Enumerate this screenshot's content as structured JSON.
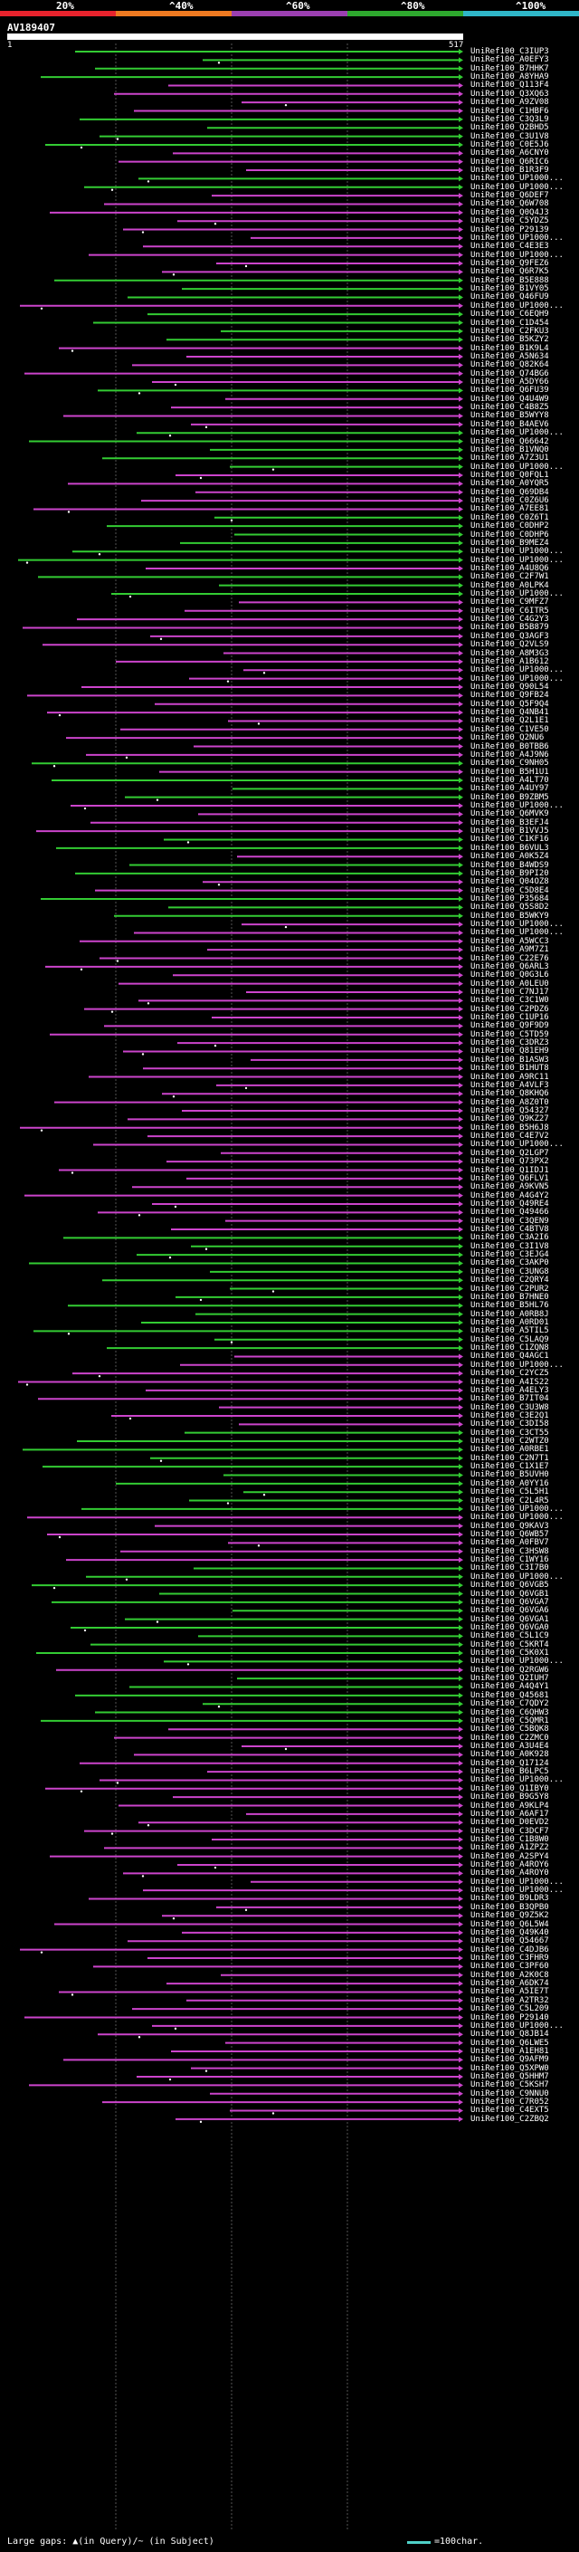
{
  "legend": {
    "percent_labels": [
      "20%",
      "^40%",
      "^60%",
      "^80%",
      "^100%"
    ],
    "bands": [
      {
        "color": "#e8232d"
      },
      {
        "color": "#ee7a21"
      },
      {
        "color": "#9b3fb0"
      },
      {
        "color": "#2ea82e"
      },
      {
        "color": "#2fb6c8"
      }
    ]
  },
  "query": {
    "id": "AV189407",
    "start": "1",
    "end": "517"
  },
  "hits": [
    "UniRef100_C3IUP3",
    "UniRef100_A0EFY3",
    "UniRef100_B7HHK7",
    "UniRef100_A8YHA9",
    "UniRef100_Q113F4",
    "UniRef100_Q3XQ63",
    "UniRef100_A9ZV08",
    "UniRef100_C1HBF6",
    "UniRef100_C3Q3L9",
    "UniRef100_Q2BHD5",
    "UniRef100_C3U1V8",
    "UniRef100_C0E5J6",
    "UniRef100_A6CNY0",
    "UniRef100_Q6RIC6",
    "UniRef100_B1R3F9",
    "UniRef100_UP1000...",
    "UniRef100_UP1000...",
    "UniRef100_Q6DEF7",
    "UniRef100_Q6W708",
    "UniRef100_Q0Q4J3",
    "UniRef100_C5YDZ5",
    "UniRef100_P29139",
    "UniRef100_UP1000...",
    "UniRef100_C4E3E3",
    "UniRef100_UP1000...",
    "UniRef100_Q9FEZ6",
    "UniRef100_Q6R7K5",
    "UniRef100_B5E888",
    "UniRef100_B1VY05",
    "UniRef100_Q46FU9",
    "UniRef100_UP1000...",
    "UniRef100_C6EQH9",
    "UniRef100_C1D454",
    "UniRef100_C2FKU3",
    "UniRef100_B5KZY2",
    "UniRef100_B1K9L4",
    "UniRef100_A5N634",
    "UniRef100_Q82K64",
    "UniRef100_Q74BG6",
    "UniRef100_A5DY66",
    "UniRef100_Q6FU39",
    "UniRef100_Q4U4W9",
    "UniRef100_C4B8Z5",
    "UniRef100_B5WYY8",
    "UniRef100_B4AEV6",
    "UniRef100_UP1000...",
    "UniRef100_Q66642",
    "UniRef100_B1VNQ0",
    "UniRef100_A7Z3U1",
    "UniRef100_UP1000...",
    "UniRef100_Q0FQL1",
    "UniRef100_A0YQR5",
    "UniRef100_Q69DB4",
    "UniRef100_C0Z6U6",
    "UniRef100_A7EE81",
    "UniRef100_C0Z6T1",
    "UniRef100_C0DHP2",
    "UniRef100_C0DHP6",
    "UniRef100_B9MEZ4",
    "UniRef100_UP1000...",
    "UniRef100_UP1000...",
    "UniRef100_A4U8Q6",
    "UniRef100_C2F7W1",
    "UniRef100_A0LPK4",
    "UniRef100_UP1000...",
    "UniRef100_C9MFZ7",
    "UniRef100_C6ITR5",
    "UniRef100_C4G2Y3",
    "UniRef100_B5B879",
    "UniRef100_Q3AGF3",
    "UniRef100_Q2VLS9",
    "UniRef100_A8M3G3",
    "UniRef100_A1B612",
    "UniRef100_UP1000...",
    "UniRef100_UP1000...",
    "UniRef100_Q90L54",
    "UniRef100_Q9FB24",
    "UniRef100_Q5F9Q4",
    "UniRef100_Q4NB41",
    "UniRef100_Q2L1E1",
    "UniRef100_C1VE50",
    "UniRef100_Q2NU6",
    "UniRef100_B0TBB6",
    "UniRef100_A4J9N6",
    "UniRef100_C9NH05",
    "UniRef100_B5H1U1",
    "UniRef100_A4LT70",
    "UniRef100_A4UY97",
    "UniRef100_B9ZBM5",
    "UniRef100_UP1000...",
    "UniRef100_Q6MVK9",
    "UniRef100_B3EFJ4",
    "UniRef100_B1VVJ5",
    "UniRef100_C1KF16",
    "UniRef100_B6VUL3",
    "UniRef100_A0K5Z4",
    "UniRef100_B4WDS9",
    "UniRef100_B9PI20",
    "UniRef100_Q04OZ8",
    "UniRef100_C5D8E4",
    "UniRef100_P35684",
    "UniRef100_Q5S8D2",
    "UniRef100_B5WKY9",
    "UniRef100_UP1000...",
    "UniRef100_UP1000...",
    "UniRef100_A5WCC3",
    "UniRef100_A9M7Z1",
    "UniRef100_C22E76",
    "UniRef100_Q6ARL3",
    "UniRef100_Q0G3L6",
    "UniRef100_A0LEU0",
    "UniRef100_C7NJ17",
    "UniRef100_C3C1W0",
    "UniRef100_C2PDZ6",
    "UniRef100_C1UP16",
    "UniRef100_Q9F9D9",
    "UniRef100_C5TD59",
    "UniRef100_C3DRZ3",
    "UniRef100_Q81EH9",
    "UniRef100_B1ASW3",
    "UniRef100_B1HUT8",
    "UniRef100_A9RC11",
    "UniRef100_A4VLF3",
    "UniRef100_Q8KHQ6",
    "UniRef100_A8Z0T0",
    "UniRef100_Q54327",
    "UniRef100_Q9KZ27",
    "UniRef100_B5H6J8",
    "UniRef100_C4E7V2",
    "UniRef100_UP1000...",
    "UniRef100_Q2LGP7",
    "UniRef100_Q73PX2",
    "UniRef100_Q1IDJ1",
    "UniRef100_Q6FLV1",
    "UniRef100_A9KVN5",
    "UniRef100_A4G4Y2",
    "UniRef100_Q49RE4",
    "UniRef100_Q49466",
    "UniRef100_C3QEN9",
    "UniRef100_C4BTV8",
    "UniRef100_C3A2I6",
    "UniRef100_C3I1V8",
    "UniRef100_C3EJG4",
    "UniRef100_C3AKP0",
    "UniRef100_C3UNG8",
    "UniRef100_C2QRY4",
    "UniRef100_C2PUR2",
    "UniRef100_B7HNE0",
    "UniRef100_B5HL76",
    "UniRef100_A0RB8J",
    "UniRef100_A0RD01",
    "UniRef100_A5TIL5",
    "UniRef100_C5LAQ9",
    "UniRef100_C1ZQN8",
    "UniRef100_Q4AGC1",
    "UniRef100_UP1000...",
    "UniRef100_C2YCZ5",
    "UniRef100_A4IS22",
    "UniRef100_A4ELY3",
    "UniRef100_B7IT04",
    "UniRef100_C3U3W8",
    "UniRef100_C3E2Q1",
    "UniRef100_C3DI58",
    "UniRef100_C3CT55",
    "UniRef100_C2WTZ0",
    "UniRef100_A0RBE1",
    "UniRef100_C2N7T1",
    "UniRef100_C1X1E7",
    "UniRef100_B5UVH0",
    "UniRef100_A0YY16",
    "UniRef100_C5L5H1",
    "UniRef100_C2L4R5",
    "UniRef100_UP1000...",
    "UniRef100_UP1000...",
    "UniRef100_Q9KAV3",
    "UniRef100_Q6WB57",
    "UniRef100_A0FBV7",
    "UniRef100_C3HSW8",
    "UniRef100_C1WY16",
    "UniRef100_C3I7B0",
    "UniRef100_UP1000...",
    "UniRef100_Q6VGB5",
    "UniRef100_Q6VGB1",
    "UniRef100_Q6VGA7",
    "UniRef100_Q6VGA6",
    "UniRef100_Q6VGA1",
    "UniRef100_Q6VGA0",
    "UniRef100_C5L1C9",
    "UniRef100_C5KRT4",
    "UniRef100_C5K0X1",
    "UniRef100_UP1000...",
    "UniRef100_Q2RGW6",
    "UniRef100_Q2IUH7",
    "UniRef100_A4Q4Y1",
    "UniRef100_Q45681",
    "UniRef100_C7QDY2",
    "UniRef100_C6QHW3",
    "UniRef100_C5QMR1",
    "UniRef100_C5BQK8",
    "UniRef100_C2ZMC0",
    "UniRef100_A3U4E4",
    "UniRef100_A0K928",
    "UniRef100_Q17124",
    "UniRef100_B6LPC5",
    "UniRef100_UP1000...",
    "UniRef100_Q1IBY0",
    "UniRef100_B9G5Y8",
    "UniRef100_A9KLP4",
    "UniRef100_A6AF17",
    "UniRef100_D0EVD2",
    "UniRef100_C3DCF7",
    "UniRef100_C1B8W0",
    "UniRef100_A1ZPZ2",
    "UniRef100_A2SPY4",
    "UniRef100_A4ROY6",
    "UniRef100_A4ROY0",
    "UniRef100_UP1000...",
    "UniRef100_UP1000...",
    "UniRef100_B9LDR3",
    "UniRef100_B3QPB0",
    "UniRef100_Q9Z5K2",
    "UniRef100_Q6L5W4",
    "UniRef100_Q49K40",
    "UniRef100_Q54667",
    "UniRef100_C4DJB6",
    "UniRef100_C3FHR9",
    "UniRef100_C3PF60",
    "UniRef100_A2K0C8",
    "UniRef100_A6DK74",
    "UniRef100_A5IE7T",
    "UniRef100_A2TR32",
    "UniRef100_C5L209",
    "UniRef100_P29140",
    "UniRef100_UP1000...",
    "UniRef100_Q8JB14",
    "UniRef100_Q6LWE5",
    "UniRef100_A1EH81",
    "UniRef100_Q9AFM9",
    "UniRef100_Q5XPW0",
    "UniRef100_Q5HHM7",
    "UniRef100_C5KSH7",
    "UniRef100_C9NNU0",
    "UniRef100_C7R052",
    "UniRef100_C4EXT5",
    "UniRef100_C2ZBQ2"
  ],
  "footer": {
    "gaps_text": "Large gaps: ▲(in Query)/~ (in Subject)",
    "scale_text": "=100char."
  },
  "colors": {
    "green": "#33cc33",
    "magenta": "#cc44cc",
    "grid": "#555555"
  }
}
